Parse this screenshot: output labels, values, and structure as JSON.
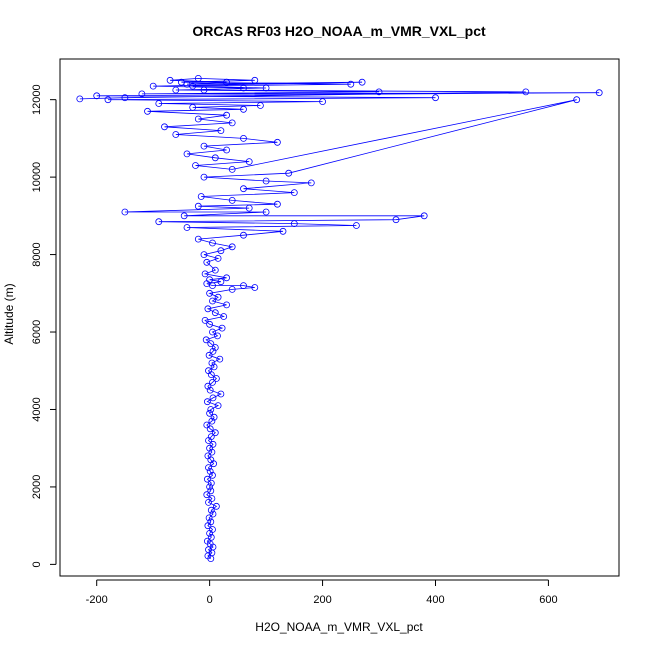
{
  "chart_data": {
    "type": "scatter",
    "title": "ORCAS RF03 H2O_NOAA_m_VMR_VXL_pct",
    "xlabel": "H2O_NOAA_m_VMR_VXL_pct",
    "ylabel": "Altitude (m)",
    "xlim": [
      -265,
      725
    ],
    "ylim": [
      -300,
      13050
    ],
    "xticks": [
      -200,
      0,
      200,
      400,
      600
    ],
    "yticks": [
      0,
      2000,
      4000,
      6000,
      8000,
      10000,
      12000
    ],
    "series_color": "#0000ff",
    "marker": "open-circle",
    "connected": true,
    "approximate": true,
    "series": [
      {
        "points": [
          [
            2,
            150
          ],
          [
            -3,
            220
          ],
          [
            4,
            300
          ],
          [
            -2,
            380
          ],
          [
            6,
            450
          ],
          [
            1,
            530
          ],
          [
            -4,
            600
          ],
          [
            3,
            700
          ],
          [
            0,
            800
          ],
          [
            5,
            900
          ],
          [
            -3,
            1000
          ],
          [
            2,
            1100
          ],
          [
            -1,
            1200
          ],
          [
            6,
            1300
          ],
          [
            3,
            1400
          ],
          [
            12,
            1500
          ],
          [
            -2,
            1600
          ],
          [
            4,
            1700
          ],
          [
            -5,
            1800
          ],
          [
            2,
            1900
          ],
          [
            0,
            2000
          ],
          [
            3,
            2100
          ],
          [
            -4,
            2200
          ],
          [
            5,
            2300
          ],
          [
            1,
            2400
          ],
          [
            -2,
            2500
          ],
          [
            7,
            2600
          ],
          [
            2,
            2700
          ],
          [
            -3,
            2800
          ],
          [
            4,
            2900
          ],
          [
            0,
            3000
          ],
          [
            6,
            3100
          ],
          [
            -2,
            3200
          ],
          [
            3,
            3300
          ],
          [
            10,
            3400
          ],
          [
            1,
            3500
          ],
          [
            -5,
            3600
          ],
          [
            4,
            3700
          ],
          [
            8,
            3800
          ],
          [
            0,
            3900
          ],
          [
            2,
            4000
          ],
          [
            15,
            4100
          ],
          [
            -4,
            4200
          ],
          [
            6,
            4300
          ],
          [
            20,
            4400
          ],
          [
            1,
            4500
          ],
          [
            -3,
            4600
          ],
          [
            5,
            4700
          ],
          [
            12,
            4800
          ],
          [
            3,
            4900
          ],
          [
            -2,
            5000
          ],
          [
            8,
            5100
          ],
          [
            4,
            5200
          ],
          [
            18,
            5300
          ],
          [
            -1,
            5400
          ],
          [
            6,
            5500
          ],
          [
            10,
            5600
          ],
          [
            2,
            5700
          ],
          [
            -6,
            5800
          ],
          [
            14,
            5900
          ],
          [
            5,
            6000
          ],
          [
            22,
            6100
          ],
          [
            0,
            6200
          ],
          [
            -8,
            6300
          ],
          [
            25,
            6400
          ],
          [
            10,
            6500
          ],
          [
            -3,
            6600
          ],
          [
            30,
            6700
          ],
          [
            5,
            6800
          ],
          [
            15,
            6900
          ],
          [
            0,
            7000
          ],
          [
            40,
            7100
          ],
          [
            80,
            7150
          ],
          [
            60,
            7200
          ],
          [
            5,
            7200
          ],
          [
            -5,
            7250
          ],
          [
            20,
            7300
          ],
          [
            0,
            7350
          ],
          [
            30,
            7400
          ],
          [
            -8,
            7500
          ],
          [
            10,
            7600
          ],
          [
            -5,
            7800
          ],
          [
            15,
            7900
          ],
          [
            -10,
            8000
          ],
          [
            20,
            8100
          ],
          [
            40,
            8200
          ],
          [
            5,
            8300
          ],
          [
            -20,
            8400
          ],
          [
            60,
            8500
          ],
          [
            130,
            8600
          ],
          [
            -40,
            8700
          ],
          [
            260,
            8750
          ],
          [
            150,
            8800
          ],
          [
            -90,
            8850
          ],
          [
            330,
            8900
          ],
          [
            380,
            9000
          ],
          [
            -45,
            9000
          ],
          [
            100,
            9100
          ],
          [
            -150,
            9100
          ],
          [
            70,
            9200
          ],
          [
            -20,
            9250
          ],
          [
            120,
            9300
          ],
          [
            40,
            9400
          ],
          [
            -15,
            9500
          ],
          [
            150,
            9600
          ],
          [
            60,
            9700
          ],
          [
            180,
            9850
          ],
          [
            100,
            9900
          ],
          [
            -10,
            10000
          ],
          [
            140,
            10100
          ],
          [
            650,
            12000
          ],
          [
            40,
            10200
          ],
          [
            -25,
            10300
          ],
          [
            70,
            10400
          ],
          [
            10,
            10500
          ],
          [
            -40,
            10600
          ],
          [
            30,
            10700
          ],
          [
            -10,
            10800
          ],
          [
            120,
            10900
          ],
          [
            60,
            11000
          ],
          [
            -60,
            11100
          ],
          [
            20,
            11200
          ],
          [
            -80,
            11300
          ],
          [
            40,
            11400
          ],
          [
            -20,
            11500
          ],
          [
            30,
            11600
          ],
          [
            -110,
            11700
          ],
          [
            60,
            11750
          ],
          [
            -30,
            11800
          ],
          [
            90,
            11850
          ],
          [
            -90,
            11900
          ],
          [
            200,
            11950
          ],
          [
            -180,
            12000
          ],
          [
            400,
            12050
          ],
          [
            -200,
            12100
          ],
          [
            690,
            12180
          ],
          [
            -120,
            12150
          ],
          [
            300,
            12200
          ],
          [
            -60,
            12250
          ],
          [
            100,
            12300
          ],
          [
            -30,
            12350
          ],
          [
            250,
            12400
          ],
          [
            -50,
            12450
          ],
          [
            80,
            12500
          ],
          [
            -20,
            12550
          ],
          [
            -70,
            12500
          ],
          [
            30,
            12450
          ],
          [
            -40,
            12400
          ],
          [
            270,
            12450
          ],
          [
            -100,
            12350
          ],
          [
            60,
            12300
          ],
          [
            -10,
            12250
          ],
          [
            560,
            12200
          ],
          [
            -150,
            12050
          ],
          [
            -230,
            12020
          ]
        ]
      }
    ]
  }
}
